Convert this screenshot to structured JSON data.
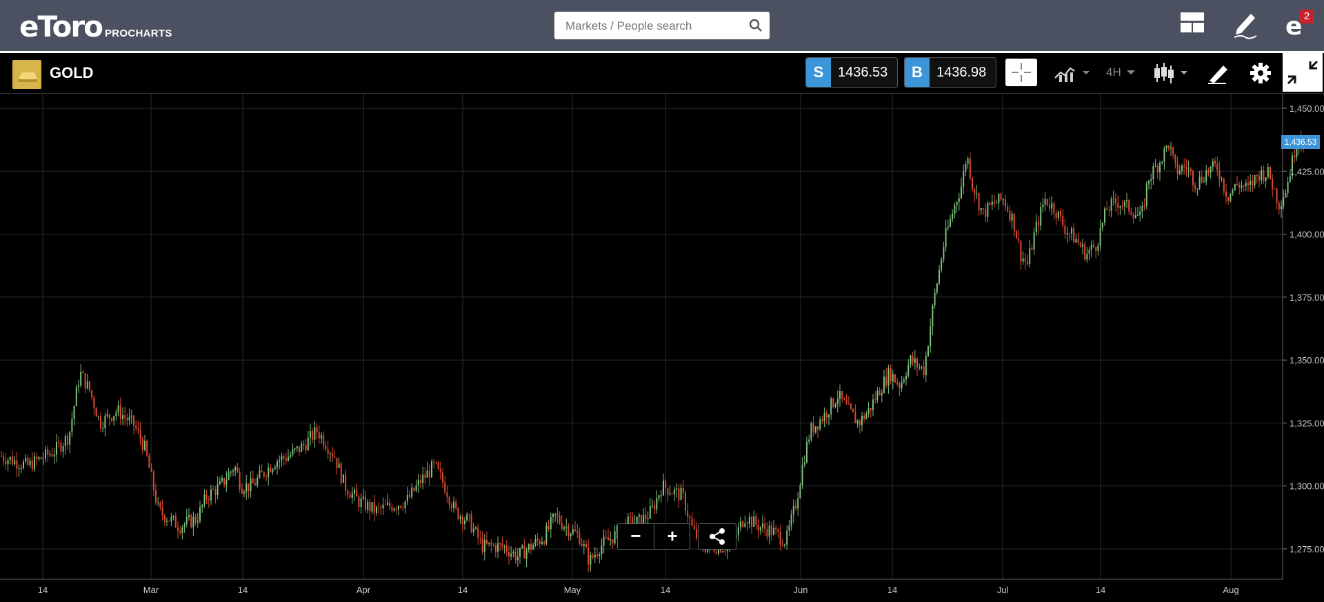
{
  "header": {
    "logo_text": "eToro",
    "logo_sub": "PROCHARTS",
    "search": {
      "placeholder": "Markets / People search",
      "value": ""
    },
    "notification_count": "2"
  },
  "toolbar": {
    "asset_name": "GOLD",
    "sell": {
      "label": "S",
      "price": "1436.53"
    },
    "buy": {
      "label": "B",
      "price": "1436.98"
    },
    "timeframe": "4H"
  },
  "chart_data": {
    "type": "candlestick",
    "instrument": "GOLD",
    "interval": "4H",
    "y_ticks": [
      "1,450.00",
      "1,425.00",
      "1,400.00",
      "1,375.00",
      "1,350.00",
      "1,325.00",
      "1,300.00",
      "1,275.00"
    ],
    "x_ticks": [
      "14",
      "Mar",
      "14",
      "Apr",
      "14",
      "May",
      "14",
      "Jun",
      "14",
      "Jul",
      "14",
      "Aug"
    ],
    "ylim": [
      1264,
      1454
    ],
    "current_price_label": "1,436.53",
    "grid": true,
    "colors": {
      "up": "#7fc27f",
      "down": "#e04b2e",
      "grid": "#2c2c2c",
      "price_label": "#3c95d8"
    },
    "trend_points": [
      [
        0,
        1312
      ],
      [
        40,
        1308
      ],
      [
        80,
        1314
      ],
      [
        100,
        1320
      ],
      [
        116,
        1345
      ],
      [
        130,
        1338
      ],
      [
        145,
        1325
      ],
      [
        170,
        1330
      ],
      [
        195,
        1324
      ],
      [
        210,
        1315
      ],
      [
        230,
        1290
      ],
      [
        260,
        1284
      ],
      [
        285,
        1287
      ],
      [
        300,
        1296
      ],
      [
        320,
        1300
      ],
      [
        340,
        1308
      ],
      [
        350,
        1300
      ],
      [
        365,
        1300
      ],
      [
        385,
        1306
      ],
      [
        400,
        1310
      ],
      [
        420,
        1312
      ],
      [
        440,
        1316
      ],
      [
        460,
        1322
      ],
      [
        470,
        1318
      ],
      [
        485,
        1312
      ],
      [
        500,
        1300
      ],
      [
        520,
        1294
      ],
      [
        545,
        1290
      ],
      [
        565,
        1292
      ],
      [
        590,
        1294
      ],
      [
        610,
        1302
      ],
      [
        630,
        1308
      ],
      [
        645,
        1300
      ],
      [
        660,
        1290
      ],
      [
        680,
        1286
      ],
      [
        700,
        1276
      ],
      [
        730,
        1276
      ],
      [
        750,
        1272
      ],
      [
        770,
        1276
      ],
      [
        790,
        1280
      ],
      [
        805,
        1288
      ],
      [
        820,
        1284
      ],
      [
        840,
        1280
      ],
      [
        855,
        1270
      ],
      [
        870,
        1276
      ],
      [
        890,
        1280
      ],
      [
        910,
        1285
      ],
      [
        930,
        1286
      ],
      [
        945,
        1290
      ],
      [
        960,
        1300
      ],
      [
        975,
        1298
      ],
      [
        990,
        1296
      ],
      [
        1005,
        1282
      ],
      [
        1020,
        1276
      ],
      [
        1040,
        1276
      ],
      [
        1060,
        1276
      ],
      [
        1080,
        1288
      ],
      [
        1100,
        1284
      ],
      [
        1120,
        1282
      ],
      [
        1140,
        1278
      ],
      [
        1155,
        1294
      ],
      [
        1165,
        1310
      ],
      [
        1175,
        1322
      ],
      [
        1195,
        1328
      ],
      [
        1215,
        1336
      ],
      [
        1230,
        1330
      ],
      [
        1245,
        1325
      ],
      [
        1260,
        1330
      ],
      [
        1275,
        1338
      ],
      [
        1290,
        1345
      ],
      [
        1305,
        1340
      ],
      [
        1320,
        1350
      ],
      [
        1340,
        1346
      ],
      [
        1355,
        1375
      ],
      [
        1370,
        1398
      ],
      [
        1385,
        1412
      ],
      [
        1395,
        1420
      ],
      [
        1402,
        1432
      ],
      [
        1410,
        1420
      ],
      [
        1425,
        1408
      ],
      [
        1440,
        1412
      ],
      [
        1455,
        1414
      ],
      [
        1470,
        1405
      ],
      [
        1480,
        1392
      ],
      [
        1490,
        1388
      ],
      [
        1500,
        1400
      ],
      [
        1515,
        1414
      ],
      [
        1530,
        1410
      ],
      [
        1545,
        1402
      ],
      [
        1560,
        1398
      ],
      [
        1575,
        1392
      ],
      [
        1590,
        1396
      ],
      [
        1605,
        1410
      ],
      [
        1620,
        1413
      ],
      [
        1640,
        1410
      ],
      [
        1655,
        1406
      ],
      [
        1665,
        1422
      ],
      [
        1680,
        1428
      ],
      [
        1695,
        1436
      ],
      [
        1705,
        1425
      ],
      [
        1720,
        1427
      ],
      [
        1735,
        1420
      ],
      [
        1750,
        1425
      ],
      [
        1765,
        1427
      ],
      [
        1780,
        1415
      ],
      [
        1795,
        1420
      ],
      [
        1810,
        1418
      ],
      [
        1825,
        1424
      ],
      [
        1840,
        1424
      ],
      [
        1855,
        1412
      ],
      [
        1865,
        1418
      ],
      [
        1875,
        1430
      ],
      [
        1882,
        1440
      ],
      [
        1890,
        1436
      ]
    ]
  }
}
